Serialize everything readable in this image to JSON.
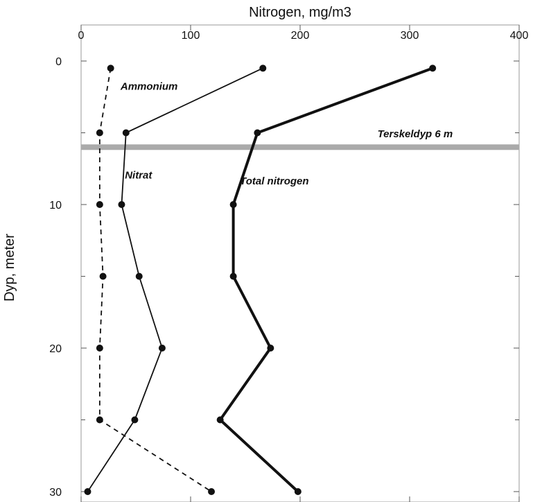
{
  "chart_data": {
    "type": "line",
    "title": "",
    "xlabel": "Nitrogen, mg/m3",
    "ylabel": "Dyp, meter",
    "x_axis_position": "top",
    "y_inverted": true,
    "xlim": [
      0,
      400
    ],
    "ylim": [
      0,
      30
    ],
    "x_ticks": [
      0,
      100,
      200,
      300,
      400
    ],
    "y_ticks": [
      0,
      10,
      20,
      30
    ],
    "grid": false,
    "legend": "none",
    "series": [
      {
        "name": "Ammonium",
        "style": "dashed",
        "color": "#111111",
        "points": [
          [
            27,
            0.5
          ],
          [
            17,
            5
          ],
          [
            17,
            10
          ],
          [
            20,
            15
          ],
          [
            17,
            20
          ],
          [
            17,
            25
          ],
          [
            119,
            30
          ]
        ]
      },
      {
        "name": "Nitrat",
        "style": "solid-thin",
        "color": "#111111",
        "points": [
          [
            166,
            0.5
          ],
          [
            41,
            5
          ],
          [
            37,
            10
          ],
          [
            53,
            15
          ],
          [
            74,
            20
          ],
          [
            49,
            25
          ],
          [
            6,
            30
          ]
        ]
      },
      {
        "name": "Total nitrogen",
        "style": "solid-thick",
        "color": "#111111",
        "points": [
          [
            321,
            0.5
          ],
          [
            161,
            5
          ],
          [
            139,
            10
          ],
          [
            139,
            15
          ],
          [
            173,
            20
          ],
          [
            127,
            25
          ],
          [
            198,
            30
          ]
        ]
      }
    ],
    "reference_line": {
      "label": "Terskeldyp 6 m",
      "depth": 6,
      "color": "#aaaaaa"
    }
  }
}
